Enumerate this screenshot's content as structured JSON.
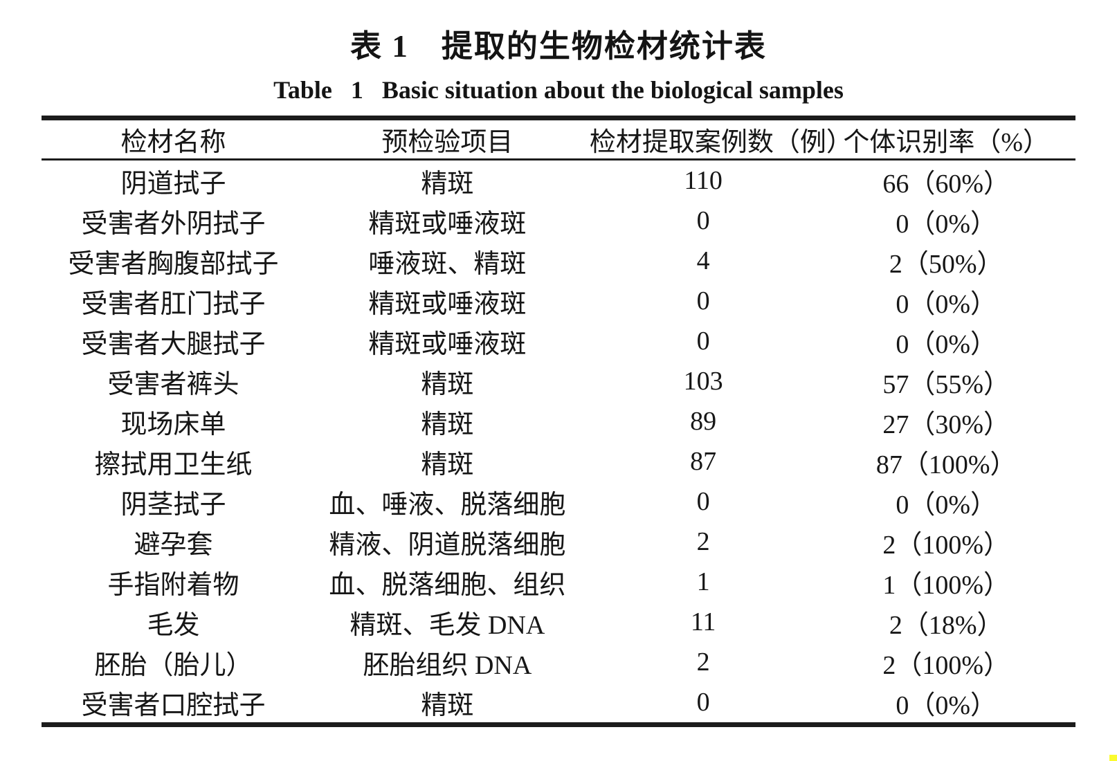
{
  "captions": {
    "zh": "表 1　提取的生物检材统计表",
    "en": "Table   1   Basic situation about the biological samples"
  },
  "table": {
    "columns": [
      "检材名称",
      "预检验项目",
      "检材提取案例数（例）",
      "个体识别率（%）"
    ],
    "rows": [
      [
        "阴道拭子",
        "精斑",
        "110",
        "66（60%）"
      ],
      [
        "受害者外阴拭子",
        "精斑或唾液斑",
        "0",
        "0（0%）"
      ],
      [
        "受害者胸腹部拭子",
        "唾液斑、精斑",
        "4",
        "2（50%）"
      ],
      [
        "受害者肛门拭子",
        "精斑或唾液斑",
        "0",
        "0（0%）"
      ],
      [
        "受害者大腿拭子",
        "精斑或唾液斑",
        "0",
        "0（0%）"
      ],
      [
        "受害者裤头",
        "精斑",
        "103",
        "57（55%）"
      ],
      [
        "现场床单",
        "精斑",
        "89",
        "27（30%）"
      ],
      [
        "擦拭用卫生纸",
        "精斑",
        "87",
        "87（100%）"
      ],
      [
        "阴茎拭子",
        "血、唾液、脱落细胞",
        "0",
        "0（0%）"
      ],
      [
        "避孕套",
        "精液、阴道脱落细胞",
        "2",
        "2（100%）"
      ],
      [
        "手指附着物",
        "血、脱落细胞、组织",
        "1",
        "1（100%）"
      ],
      [
        "毛发",
        "精斑、毛发 DNA",
        "11",
        "2（18%）"
      ],
      [
        "胚胎（胎儿）",
        "胚胎组织 DNA",
        "2",
        "2（100%）"
      ],
      [
        "受害者口腔拭子",
        "精斑",
        "0",
        "0（0%）"
      ]
    ]
  },
  "colors": {
    "text": "#161616",
    "rule": "#1c1c1c",
    "artifact_yellow": "#fbfb2e"
  }
}
